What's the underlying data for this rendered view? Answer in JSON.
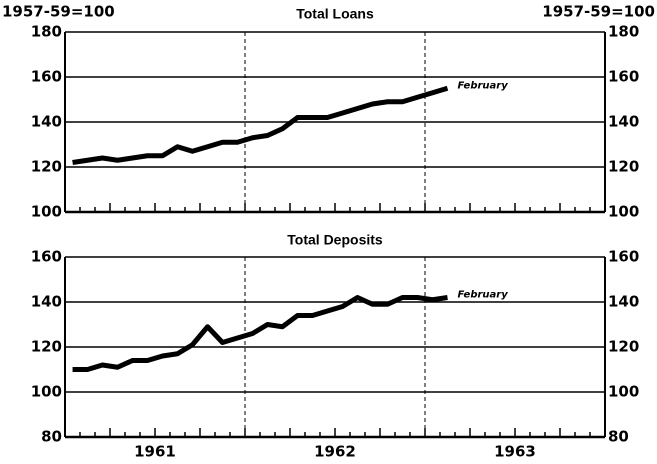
{
  "chart_data": [
    {
      "type": "line",
      "title": "Total Loans",
      "left_label": "1957-59=100",
      "right_label": "1957-59=100",
      "x": [
        1961.042,
        1961.125,
        1961.208,
        1961.292,
        1961.375,
        1961.458,
        1961.542,
        1961.625,
        1961.708,
        1961.792,
        1961.875,
        1961.958,
        1962.042,
        1962.125,
        1962.208,
        1962.292,
        1962.375,
        1962.458,
        1962.542,
        1962.625,
        1962.708,
        1962.792,
        1962.875,
        1962.958,
        1963.042,
        1963.125
      ],
      "series": [
        {
          "color": "#000000",
          "values": [
            122,
            123,
            124,
            123,
            124,
            125,
            125,
            129,
            127,
            129,
            131,
            131,
            133,
            134,
            137,
            142,
            142,
            142,
            144,
            146,
            148,
            149,
            149,
            151,
            153,
            155
          ]
        }
      ],
      "annotation": "February",
      "xlim": [
        1961,
        1964
      ],
      "xgrid": [
        1962,
        1963
      ],
      "ylim": [
        100,
        180
      ],
      "yticks": [
        100,
        120,
        140,
        160,
        180
      ],
      "grid": true
    },
    {
      "type": "line",
      "title": "Total Deposits",
      "x": [
        1961.042,
        1961.125,
        1961.208,
        1961.292,
        1961.375,
        1961.458,
        1961.542,
        1961.625,
        1961.708,
        1961.792,
        1961.875,
        1961.958,
        1962.042,
        1962.125,
        1962.208,
        1962.292,
        1962.375,
        1962.458,
        1962.542,
        1962.625,
        1962.708,
        1962.792,
        1962.875,
        1962.958,
        1963.042,
        1963.125
      ],
      "series": [
        {
          "color": "#000000",
          "values": [
            110,
            110,
            112,
            111,
            114,
            114,
            116,
            117,
            121,
            129,
            122,
            124,
            126,
            130,
            129,
            134,
            134,
            136,
            138,
            142,
            139,
            139,
            142,
            142,
            141,
            142
          ]
        }
      ],
      "annotation": "February",
      "xlim": [
        1961,
        1964
      ],
      "xgrid": [
        1962,
        1963
      ],
      "xticks": [
        {
          "value": 1961.5,
          "label": "1961"
        },
        {
          "value": 1962.5,
          "label": "1962"
        },
        {
          "value": 1963.5,
          "label": "1963"
        }
      ],
      "ylim": [
        80,
        160
      ],
      "yticks": [
        80,
        100,
        120,
        140,
        160
      ],
      "grid": true
    }
  ]
}
